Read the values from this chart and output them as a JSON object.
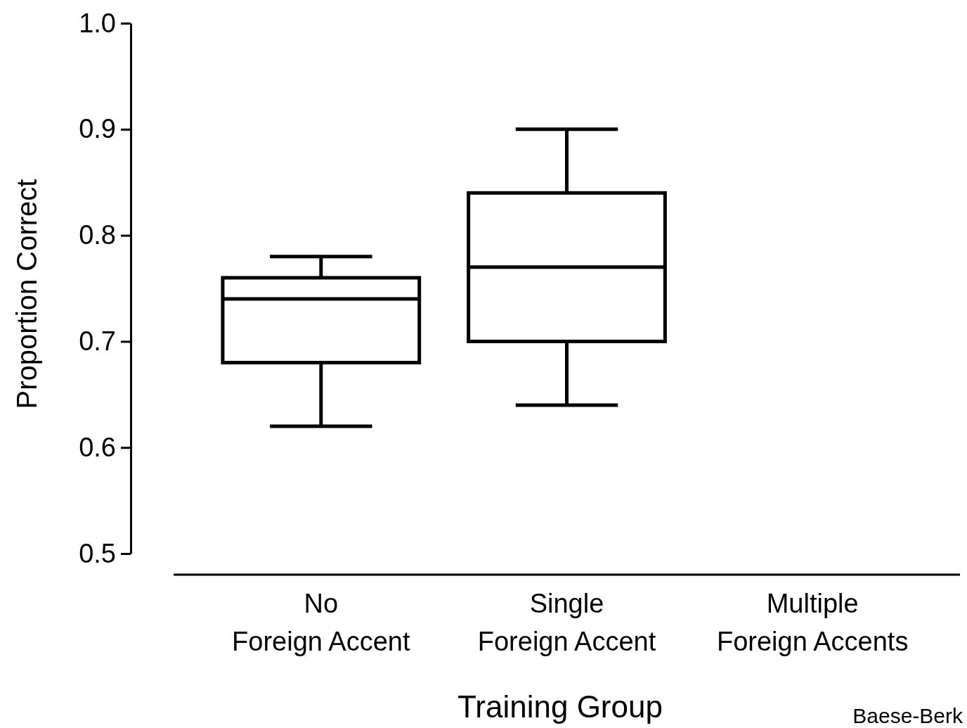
{
  "chart_data": {
    "type": "box",
    "categories": [
      "No Foreign Accent",
      "Single Foreign Accent",
      "Multiple Foreign Accents"
    ],
    "boxes": [
      {
        "low": 0.62,
        "q1": 0.68,
        "median": 0.74,
        "q3": 0.76,
        "high": 0.78
      },
      {
        "low": 0.64,
        "q1": 0.7,
        "median": 0.77,
        "q3": 0.84,
        "high": 0.9
      },
      null
    ],
    "color": "#000000",
    "ylim": [
      0.5,
      1.0
    ],
    "yticks": [
      0.5,
      0.6,
      0.7,
      0.8,
      0.9,
      {
        "value": 1.0,
        "label": "1.0"
      }
    ],
    "xlabel": "Training Group",
    "ylabel": "Proportion Correct",
    "annotations": [
      "Baese-Berk"
    ],
    "grid": false
  }
}
